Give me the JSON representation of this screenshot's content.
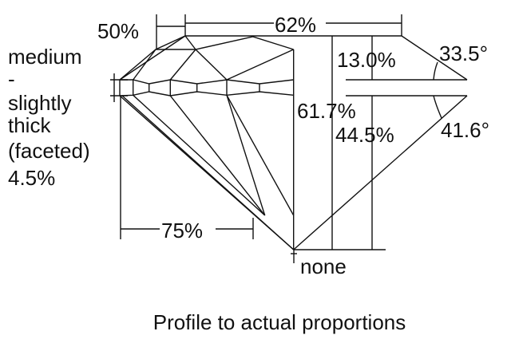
{
  "labels": {
    "star_length": "50%",
    "table": "62%",
    "girdle_lines": [
      "medium",
      "-",
      "slightly",
      "thick",
      "(faceted)",
      "4.5%"
    ],
    "crown_height": "13.0%",
    "crown_angle": "33.5°",
    "total_depth": "61.7%",
    "pavilion_depth": "44.5%",
    "pavilion_angle": "41.6°",
    "lower_half": "75%",
    "culet": "none"
  },
  "caption": "Profile to actual proportions"
}
